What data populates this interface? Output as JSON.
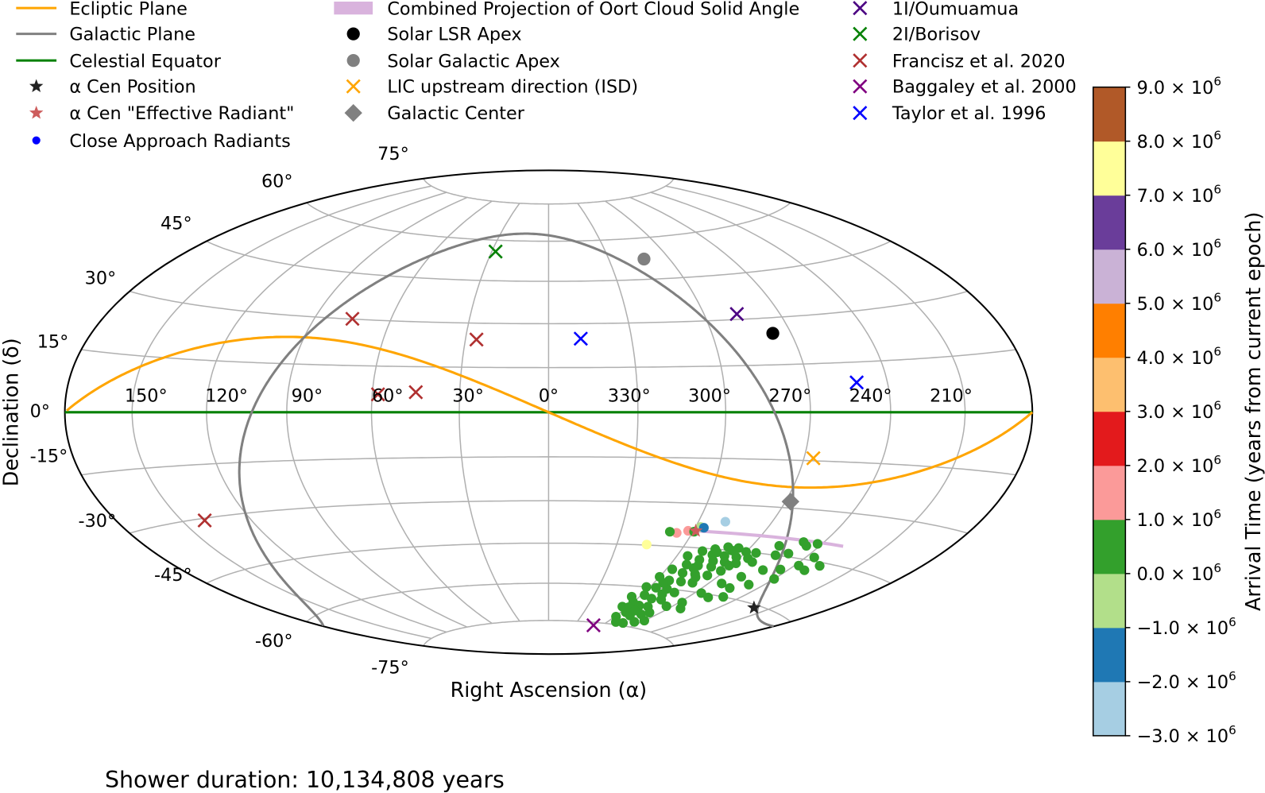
{
  "chart_data": {
    "type": "scatter",
    "projection": "hammer",
    "xlabel": "Right Ascension (α)",
    "ylabel": "Declination (δ)",
    "footer": "Shower duration: 10,134,808 years",
    "grid": true,
    "ra_tick_labels": [
      {
        "ra": 150,
        "label": "150°"
      },
      {
        "ra": 120,
        "label": "120°"
      },
      {
        "ra": 90,
        "label": "90°"
      },
      {
        "ra": 60,
        "label": "60°"
      },
      {
        "ra": 30,
        "label": "30°"
      },
      {
        "ra": 0,
        "label": "0°"
      },
      {
        "ra": 330,
        "label": "330°"
      },
      {
        "ra": 300,
        "label": "300°"
      },
      {
        "ra": 270,
        "label": "270°"
      },
      {
        "ra": 240,
        "label": "240°"
      },
      {
        "ra": 210,
        "label": "210°"
      }
    ],
    "dec_tick_labels": [
      {
        "dec": 75,
        "label": "75°"
      },
      {
        "dec": 60,
        "label": "60°"
      },
      {
        "dec": 45,
        "label": "45°"
      },
      {
        "dec": 30,
        "label": "30°"
      },
      {
        "dec": 15,
        "label": "15°"
      },
      {
        "dec": 0,
        "label": "0°"
      },
      {
        "dec": -15,
        "label": "-15°"
      },
      {
        "dec": -30,
        "label": "-30°"
      },
      {
        "dec": -45,
        "label": "-45°"
      },
      {
        "dec": -60,
        "label": "-60°"
      },
      {
        "dec": -75,
        "label": "-75°"
      }
    ],
    "legend_position": "top",
    "legend": [
      {
        "label": "Ecliptic Plane",
        "marker": "line",
        "color": "#ffa500"
      },
      {
        "label": "Galactic Plane",
        "marker": "line",
        "color": "#808080"
      },
      {
        "label": "Celestial Equator",
        "marker": "line",
        "color": "#008000"
      },
      {
        "label": "α Cen Position",
        "marker": "star",
        "color": "#222222"
      },
      {
        "label": "α Cen \"Effective Radiant\"",
        "marker": "star",
        "color": "#cd5c5c"
      },
      {
        "label": "Close Approach Radiants",
        "marker": "dot",
        "color": "#0000ff"
      },
      {
        "label": "Combined Projection of Oort Cloud Solid Angle",
        "marker": "patch",
        "color": "#d9b3dd"
      },
      {
        "label": "Solar LSR Apex",
        "marker": "circle",
        "color": "#000000"
      },
      {
        "label": "Solar Galactic Apex",
        "marker": "circle",
        "color": "#808080"
      },
      {
        "label": "LIC upstream direction (ISD)",
        "marker": "x",
        "color": "#ffa500"
      },
      {
        "label": "Galactic Center",
        "marker": "diamond",
        "color": "#808080"
      },
      {
        "label": "1I/Oumuamua",
        "marker": "x",
        "color": "#4b0082"
      },
      {
        "label": "2I/Borisov",
        "marker": "x",
        "color": "#008000"
      },
      {
        "label": "Francisz et al. 2020",
        "marker": "x",
        "color": "#b03030"
      },
      {
        "label": "Baggaley et al. 2000",
        "marker": "x",
        "color": "#800080"
      },
      {
        "label": "Taylor et al. 1996",
        "marker": "x",
        "color": "#0000ff"
      }
    ],
    "curves": {
      "ecliptic_obliquity_deg": 23.44,
      "galactic_north_pole": {
        "ra": 192.86,
        "dec": 27.13,
        "l_ncp": 122.93
      },
      "celestial_equator_dec": 0
    },
    "objects": [
      {
        "name": "alpha-cen-position",
        "legend": 3,
        "points": [
          [
            219.9,
            -60.8
          ]
        ]
      },
      {
        "name": "solar-lsr-apex",
        "legend": 7,
        "points": [
          [
            277,
            25
          ]
        ]
      },
      {
        "name": "solar-galactic-apex",
        "legend": 8,
        "points": [
          [
            312.5,
            52.3
          ]
        ]
      },
      {
        "name": "lic-upstream",
        "legend": 9,
        "points": [
          [
            266.5,
            -14.2
          ]
        ]
      },
      {
        "name": "galactic-center",
        "legend": 10,
        "points": [
          [
            268,
            -28
          ]
        ]
      },
      {
        "name": "oumuamua",
        "legend": 11,
        "points": [
          [
            287.1,
            31.8
          ]
        ]
      },
      {
        "name": "borisov",
        "legend": 12,
        "points": [
          [
            28,
            55.7
          ]
        ]
      },
      {
        "name": "francisz-2020",
        "legend": 13,
        "points": [
          [
            75,
            30.1
          ],
          [
            26,
            24.4
          ],
          [
            45,
            6.6
          ],
          [
            58,
            5.8
          ],
          [
            140,
            -30.6
          ]
        ]
      },
      {
        "name": "baggaley-2000",
        "legend": 14,
        "points": [
          [
            309.2,
            -76.2
          ]
        ]
      },
      {
        "name": "taylor-1996",
        "legend": 15,
        "points": [
          [
            348.4,
            24.8
          ],
          [
            251.8,
            8.9
          ]
        ]
      }
    ],
    "effective_radiant": [
      299,
      -39.3
    ],
    "oort_cloud_projection": [
      [
        299,
        -39.3
      ],
      [
        229.4,
        -39.6
      ]
    ],
    "close_approach_radiants": [
      {
        "ra": 316.8,
        "dec": -44.8,
        "arrival_time": 7500000
      },
      {
        "ra": 289.1,
        "dec": -35.7,
        "arrival_time": -2500000
      },
      {
        "ra": 306.5,
        "dec": -40.3,
        "arrival_time": 1500000
      },
      {
        "ra": 302.2,
        "dec": -39.4,
        "arrival_time": 1500000
      },
      {
        "ra": 309.6,
        "dec": -40.0,
        "arrival_time": 500000
      },
      {
        "ra": 297.9,
        "dec": -37.9,
        "arrival_time": -500000
      },
      {
        "ra": 296.4,
        "dec": -38.1,
        "arrival_time": -1500000
      },
      {
        "ra": 299.5,
        "dec": -39.6,
        "arrival_time": 500000
      }
    ],
    "cluster": {
      "arrival_time": 500000,
      "points": [
        [
          285,
          -45
        ],
        [
          280,
          -44
        ],
        [
          275,
          -44
        ],
        [
          270,
          -45
        ],
        [
          265,
          -45
        ],
        [
          290,
          -46
        ],
        [
          284,
          -47
        ],
        [
          278,
          -47
        ],
        [
          272,
          -47
        ],
        [
          266,
          -47
        ],
        [
          295,
          -48
        ],
        [
          288,
          -49
        ],
        [
          281,
          -49
        ],
        [
          275,
          -49
        ],
        [
          269,
          -49
        ],
        [
          262,
          -48
        ],
        [
          292,
          -51
        ],
        [
          286,
          -51
        ],
        [
          279,
          -51
        ],
        [
          272,
          -52
        ],
        [
          297,
          -53
        ],
        [
          290,
          -54
        ],
        [
          283,
          -54
        ],
        [
          276,
          -54
        ],
        [
          300,
          -56
        ],
        [
          293,
          -57
        ],
        [
          286,
          -57
        ],
        [
          279,
          -57
        ],
        [
          302,
          -60
        ],
        [
          296,
          -60
        ],
        [
          289,
          -60
        ],
        [
          282,
          -61
        ],
        [
          298,
          -63
        ],
        [
          291,
          -64
        ],
        [
          284,
          -64
        ],
        [
          300,
          -66
        ],
        [
          293,
          -67
        ],
        [
          286,
          -67
        ],
        [
          296,
          -70
        ],
        [
          289,
          -71
        ],
        [
          282,
          -70
        ],
        [
          292,
          -74
        ],
        [
          284,
          -74
        ],
        [
          276,
          -73
        ],
        [
          270,
          -72
        ],
        [
          305,
          -64
        ],
        [
          304,
          -68
        ],
        [
          299,
          -72
        ],
        [
          258,
          -42
        ],
        [
          255,
          -45
        ],
        [
          250,
          -44
        ],
        [
          246,
          -41
        ],
        [
          242,
          -40
        ],
        [
          249,
          -40
        ],
        [
          238,
          -47
        ],
        [
          236,
          -44
        ],
        [
          244,
          -49
        ],
        [
          252,
          -50
        ],
        [
          258,
          -53
        ],
        [
          263,
          -56
        ],
        [
          255,
          -57
        ],
        [
          248,
          -55
        ],
        [
          240,
          -52
        ],
        [
          266,
          -60
        ],
        [
          258,
          -61
        ],
        [
          250,
          -60
        ],
        [
          268,
          -64
        ],
        [
          262,
          -66
        ],
        [
          274,
          -66
        ],
        [
          278,
          -69
        ],
        [
          232,
          -48
        ],
        [
          228,
          -46
        ],
        [
          283,
          -46
        ],
        [
          277,
          -45
        ],
        [
          271,
          -50
        ],
        [
          287,
          -52
        ],
        [
          281,
          -55
        ],
        [
          295,
          -58
        ],
        [
          288,
          -62
        ],
        [
          299,
          -68
        ],
        [
          291,
          -69
        ]
      ]
    },
    "colorbar": {
      "label": "Arrival Time (years from current epoch)",
      "boundaries": [
        -3000000,
        -2000000,
        -1000000,
        0,
        1000000,
        2000000,
        3000000,
        4000000,
        5000000,
        6000000,
        7000000,
        8000000,
        9000000
      ],
      "colors": [
        "#a6cee3",
        "#1f78b4",
        "#b2df8a",
        "#33a02c",
        "#fb9a99",
        "#e31a1c",
        "#fdbf6f",
        "#ff7f00",
        "#cab2d6",
        "#6a3d9a",
        "#ffff99",
        "#b15928"
      ],
      "tick_labels": [
        {
          "base": "−3.0 × 10",
          "exp": "6"
        },
        {
          "base": "−2.0 × 10",
          "exp": "6"
        },
        {
          "base": "−1.0 × 10",
          "exp": "6"
        },
        {
          "base": "0.0 × 10",
          "exp": "6"
        },
        {
          "base": "1.0 × 10",
          "exp": "6"
        },
        {
          "base": "2.0 × 10",
          "exp": "6"
        },
        {
          "base": "3.0 × 10",
          "exp": "6"
        },
        {
          "base": "4.0 × 10",
          "exp": "6"
        },
        {
          "base": "5.0 × 10",
          "exp": "6"
        },
        {
          "base": "6.0 × 10",
          "exp": "6"
        },
        {
          "base": "7.0 × 10",
          "exp": "6"
        },
        {
          "base": "8.0 × 10",
          "exp": "6"
        },
        {
          "base": "9.0 × 10",
          "exp": "6"
        }
      ]
    }
  }
}
